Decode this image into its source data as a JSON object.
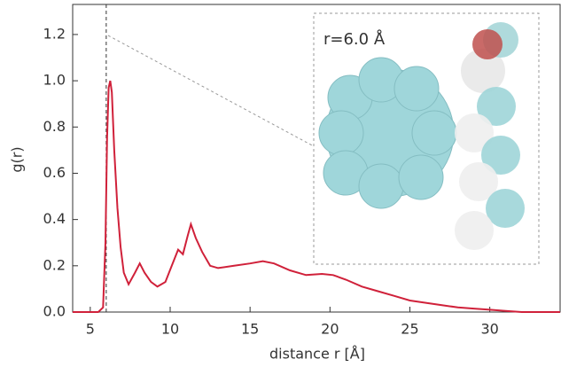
{
  "chart_data": {
    "type": "line",
    "xlabel": "distance r [Å]",
    "ylabel": "g(r)",
    "annotation": "r=6.0 Å",
    "marker_x": 6.0,
    "x": [
      3.9,
      5.5,
      5.8,
      5.95,
      6.05,
      6.15,
      6.25,
      6.35,
      6.5,
      6.7,
      6.9,
      7.1,
      7.4,
      7.8,
      8.1,
      8.4,
      8.8,
      9.2,
      9.7,
      10.1,
      10.5,
      10.8,
      11.1,
      11.3,
      11.6,
      12.0,
      12.5,
      13,
      14,
      15,
      15.8,
      16.5,
      17.5,
      18.5,
      19.5,
      20.2,
      21,
      22,
      23,
      24,
      25,
      26,
      27,
      28,
      29,
      30,
      31,
      32,
      34.4
    ],
    "series": [
      {
        "color": "#d0213a",
        "values": [
          0,
          0,
          0.02,
          0.3,
          0.75,
          0.97,
          1.0,
          0.95,
          0.7,
          0.45,
          0.28,
          0.17,
          0.12,
          0.17,
          0.21,
          0.17,
          0.13,
          0.11,
          0.13,
          0.2,
          0.27,
          0.25,
          0.33,
          0.38,
          0.32,
          0.26,
          0.2,
          0.19,
          0.2,
          0.21,
          0.22,
          0.21,
          0.18,
          0.16,
          0.165,
          0.16,
          0.14,
          0.11,
          0.09,
          0.07,
          0.05,
          0.04,
          0.03,
          0.02,
          0.015,
          0.01,
          0.005,
          0,
          0
        ]
      }
    ],
    "xlim": [
      3.9,
      34.4
    ],
    "ylim": [
      0,
      1.33
    ],
    "xticks": [
      5,
      10,
      15,
      20,
      25,
      30
    ],
    "yticks": [
      {
        "value": 0,
        "label": "0.0"
      },
      0.2,
      0.4,
      0.6,
      0.8,
      {
        "value": 1,
        "label": "1.0"
      },
      1.2
    ]
  }
}
